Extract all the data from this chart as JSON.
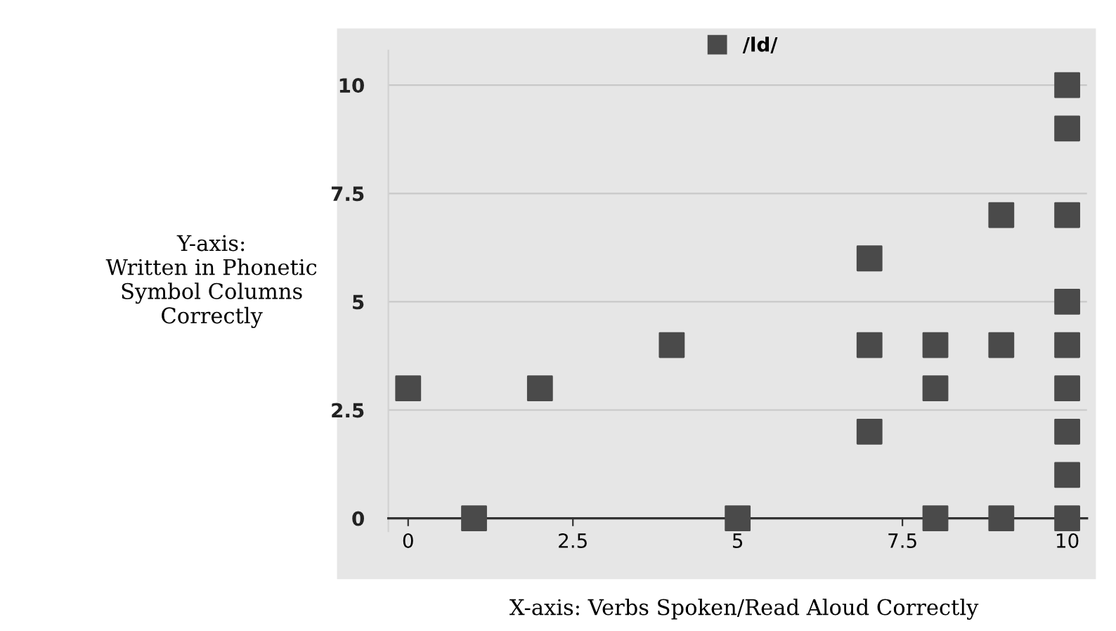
{
  "chart_data": {
    "type": "scatter",
    "xlabel": "X-axis: Verbs Spoken/Read Aloud Correctly",
    "ylabel": "Y-axis:\nWritten in Phonetic\nSymbol Columns\nCorrectly",
    "series": [
      {
        "name": "/ld/",
        "color": "#4a4a4a",
        "x": [
          0,
          1,
          2,
          4,
          5,
          7,
          7,
          7,
          8,
          8,
          8,
          9,
          9,
          9,
          10,
          10,
          10,
          10,
          10,
          10,
          10,
          10,
          10
        ],
        "values": [
          3,
          0,
          3,
          4,
          0,
          6,
          4,
          2,
          4,
          3,
          0,
          7,
          4,
          0,
          10,
          9,
          7,
          5,
          4,
          3,
          2,
          1,
          0
        ]
      }
    ],
    "xlim": [
      -0.3,
      10.3
    ],
    "ylim": [
      -0.3,
      10.8
    ],
    "xticks": [
      0,
      2.5,
      5,
      7.5,
      10
    ],
    "yticks": [
      0,
      2.5,
      5,
      7.5,
      10
    ],
    "grid": "y",
    "legend": "top",
    "marker": "square"
  }
}
